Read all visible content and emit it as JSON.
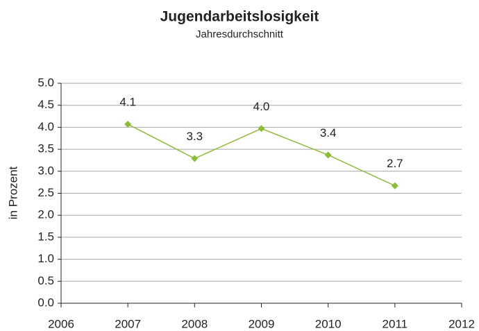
{
  "chart_data": {
    "type": "line",
    "title": "Jugendarbeitslosigkeit",
    "subtitle": "Jahresdurchschnitt",
    "ylabel": "in Prozent",
    "x": [
      2007,
      2008,
      2009,
      2010,
      2011
    ],
    "series": [
      {
        "name": "Jugendarbeitslosigkeit",
        "color": "#8cbb3c",
        "values": [
          4.07,
          3.29,
          3.97,
          3.37,
          2.67
        ],
        "value_labels": [
          "4.1",
          "3.3",
          "4.0",
          "3.4",
          "2.7"
        ]
      }
    ],
    "xlim": [
      2006,
      2012
    ],
    "xticks": [
      2006,
      2007,
      2008,
      2009,
      2010,
      2011,
      2012
    ],
    "ylim": [
      0,
      5
    ],
    "yticks": [
      {
        "value": 0,
        "label": "0.0"
      },
      0.5,
      {
        "value": 1,
        "label": "1.0"
      },
      1.5,
      {
        "value": 2,
        "label": "2.0"
      },
      2.5,
      {
        "value": 3,
        "label": "3.0"
      },
      3.5,
      {
        "value": 4,
        "label": "4.0"
      },
      4.5,
      {
        "value": 5,
        "label": "5.0"
      }
    ],
    "grid": true
  }
}
